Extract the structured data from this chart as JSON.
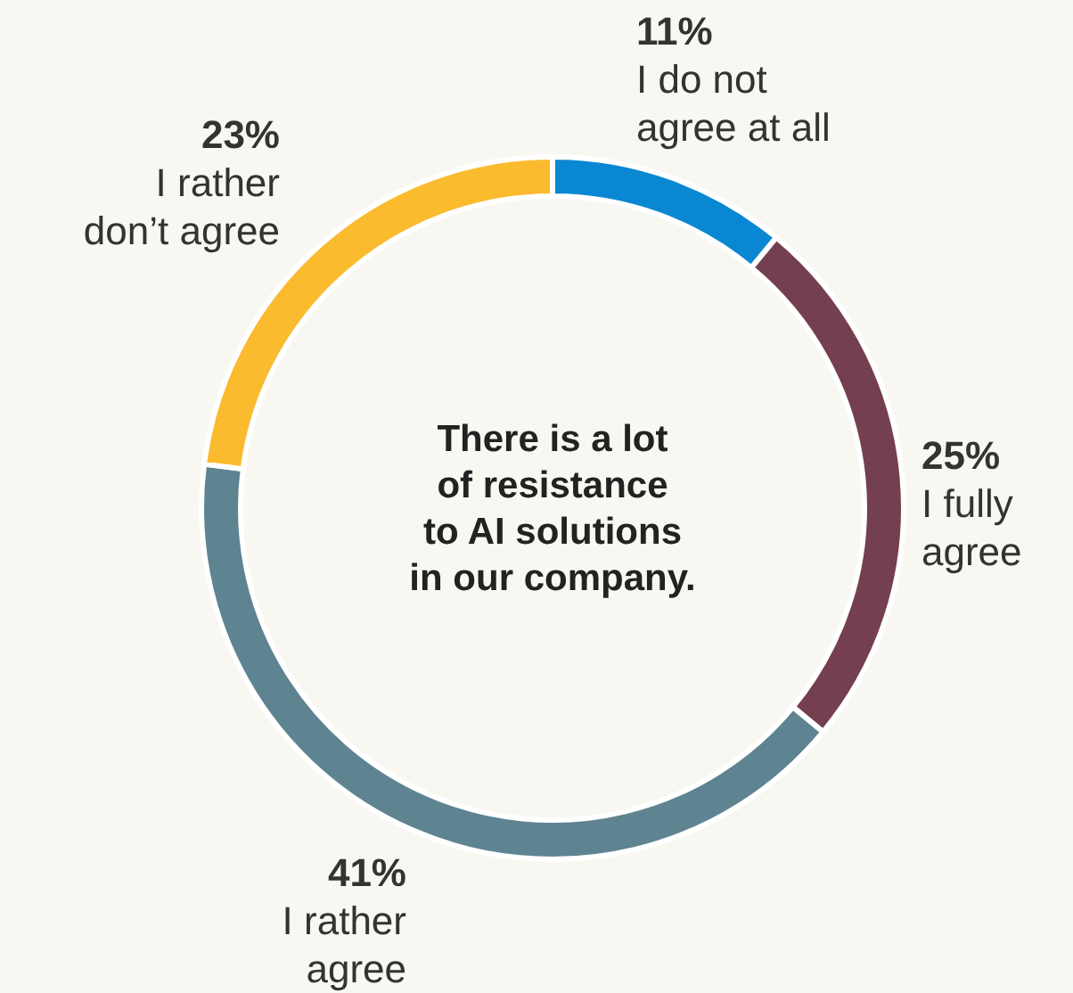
{
  "chart_data": {
    "type": "donut",
    "title": "There is a lot of resistance to AI solutions in our company.",
    "categories": [
      "I do not agree at all",
      "I fully agree",
      "I rather agree",
      "I rather don’t agree"
    ],
    "values": [
      11,
      25,
      41,
      23
    ],
    "value_labels": [
      "11%",
      "25%",
      "41%",
      "23%"
    ],
    "colors": [
      "#0a87d2",
      "#743f4f",
      "#5f8491",
      "#fbbb2f"
    ],
    "legend": false
  }
}
